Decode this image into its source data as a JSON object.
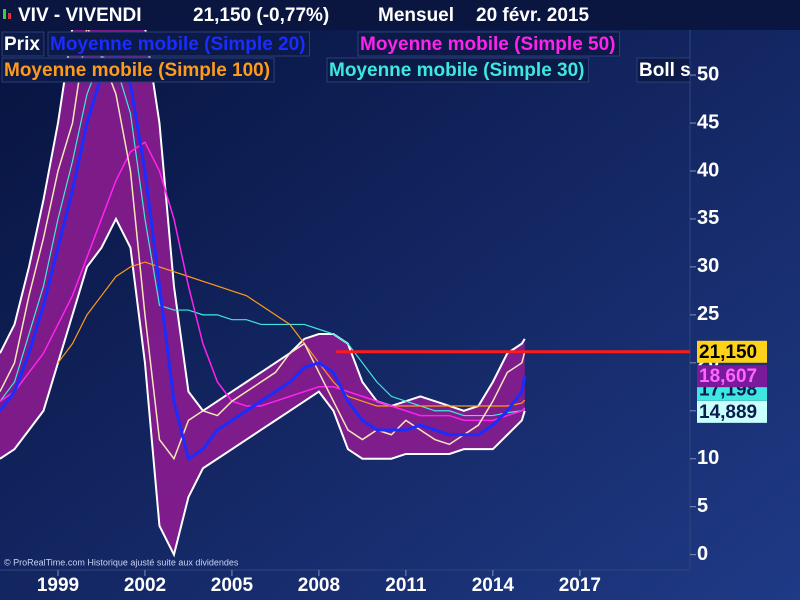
{
  "chart_data": {
    "type": "line",
    "title": "VIV - VIVENDI",
    "quote": "21,150 (-0,77%)",
    "period": "Mensuel",
    "date": "20 févr. 2015",
    "footnote": "© ProRealTime.com Historique ajusté suite aux dividendes",
    "x": [
      1997,
      1997.5,
      1998,
      1998.5,
      1999,
      1999.5,
      2000,
      2000.5,
      2001,
      2001.5,
      2002,
      2002.5,
      2003,
      2003.5,
      2004,
      2004.5,
      2005,
      2005.5,
      2006,
      2006.5,
      2007,
      2007.5,
      2008,
      2008.5,
      2009,
      2009.5,
      2010,
      2010.5,
      2011,
      2011.5,
      2012,
      2012.5,
      2013,
      2013.5,
      2014,
      2014.5,
      2015,
      2015.1
    ],
    "xlim": [
      1997,
      2020.8
    ],
    "xticks": [
      1999,
      2002,
      2005,
      2008,
      2011,
      2014,
      2017
    ],
    "ylim": [
      -1.6,
      54.7
    ],
    "yticks": [
      0,
      5,
      10,
      15,
      20,
      25,
      30,
      35,
      40,
      45,
      50
    ],
    "band": {
      "name": "Boll s",
      "color": "#8a1c8f",
      "edge": "#ffffff",
      "upper": [
        21,
        24,
        30,
        37,
        45,
        55,
        65,
        68,
        65,
        60,
        55,
        45,
        28,
        17,
        15,
        16,
        17,
        18,
        19,
        20,
        21,
        22.5,
        23,
        23,
        22,
        18,
        16,
        15.5,
        16,
        16.5,
        16,
        15.5,
        15,
        15.5,
        18,
        21,
        22,
        22.5
      ],
      "lower": [
        10,
        11,
        13,
        15,
        20,
        25,
        30,
        32,
        35,
        32,
        20,
        3,
        0,
        6,
        9,
        10,
        11,
        12,
        13,
        14,
        15,
        16,
        17,
        15,
        11,
        10,
        10,
        10,
        10.5,
        10.5,
        10.5,
        10.5,
        11,
        11,
        11,
        12.5,
        14,
        15
      ]
    },
    "series": [
      {
        "name": "Prix",
        "color": "#f5e6b8",
        "width": 1.5,
        "values": [
          17,
          20,
          27,
          33,
          40,
          45,
          55,
          52,
          48,
          40,
          25,
          12,
          10,
          14,
          15,
          14.5,
          16,
          17,
          18,
          19,
          21,
          22,
          19,
          16,
          13,
          12,
          13,
          12.5,
          14,
          13,
          12,
          11.5,
          12.5,
          13.5,
          16,
          19,
          20,
          21.15
        ]
      },
      {
        "name": "Moyenne mobile (Simple 20)",
        "color": "#1a2cff",
        "width": 3,
        "values": [
          15,
          17,
          21,
          26,
          32,
          38,
          45,
          50,
          52,
          49,
          40,
          28,
          16,
          10,
          11,
          13,
          14,
          15,
          16,
          17,
          18,
          19.5,
          20,
          19,
          16,
          14,
          13,
          13,
          13,
          13.5,
          13,
          12.5,
          12.5,
          12.5,
          13.5,
          15,
          17,
          18.607
        ]
      },
      {
        "name": "Moyenne mobile (Simple 50)",
        "color": "#ff22ee",
        "width": 1.5,
        "values": [
          16,
          17,
          19,
          21,
          24,
          27,
          31,
          35,
          39,
          42,
          43,
          40,
          35,
          28,
          22,
          18,
          16,
          15.5,
          15.5,
          16,
          16.5,
          17,
          17.5,
          17.5,
          17,
          16.5,
          16,
          15.5,
          15,
          14.5,
          14.5,
          14.5,
          14,
          14,
          14,
          14.5,
          15,
          15.3
        ]
      },
      {
        "name": "Moyenne mobile (Simple 100)",
        "color": "#ff9a1a",
        "width": 1.2,
        "values": [
          null,
          null,
          null,
          null,
          20,
          22,
          25,
          27,
          29,
          30,
          30.5,
          30,
          29.5,
          29,
          28.5,
          28,
          27.5,
          27,
          26,
          25,
          24,
          22,
          20,
          18,
          16.5,
          16,
          15.5,
          15.5,
          15.5,
          15.5,
          15.5,
          15.5,
          15.5,
          15.5,
          15.5,
          15.5,
          15.8,
          16.1
        ]
      },
      {
        "name": "Moyenne mobile (Simple 30)",
        "color": "#3ee8e0",
        "width": 1.2,
        "values": [
          16,
          18,
          23,
          28,
          35,
          41,
          48,
          52,
          51,
          46,
          35,
          26,
          25.5,
          25.5,
          25,
          25,
          24.5,
          24.5,
          24,
          24,
          24,
          24,
          23.5,
          23,
          22,
          20,
          18,
          16.5,
          16,
          15.5,
          15,
          15,
          14.5,
          14.5,
          14.5,
          14.8,
          15,
          15.2
        ]
      }
    ],
    "hline": {
      "value": 21.15,
      "x_start": 2008.6,
      "color": "#ff1a1a"
    },
    "tags": {
      "values": [
        17.198,
        18.607,
        14.889,
        21.15
      ],
      "value_labels": [
        "17,198",
        "18,607",
        "14,889",
        "21,150"
      ],
      "backgrounds": [
        "#3ee8e0",
        "#7a1a9a",
        "#c8ffff",
        "#ffd21a"
      ],
      "colors": [
        "#0b1b4d",
        "#ff66ff",
        "#0b1b4d",
        "#000000"
      ]
    }
  }
}
